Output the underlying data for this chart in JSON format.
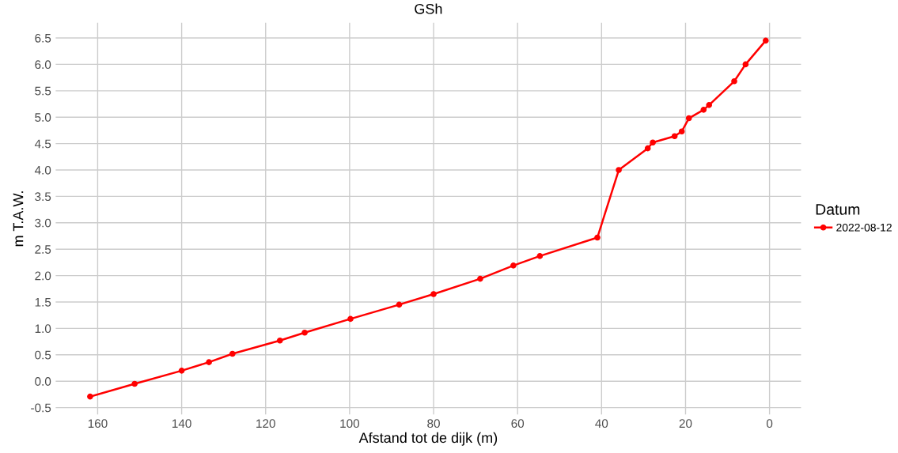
{
  "chart_data": {
    "type": "line",
    "title": "GSh",
    "xlabel": "Afstand tot de dijk (m)",
    "ylabel": "m T.A.W.",
    "legend_title": "Datum",
    "series": [
      {
        "name": "2022-08-12",
        "color": "#ff0000",
        "x": [
          161.8,
          151.2,
          140.0,
          133.5,
          127.9,
          116.6,
          110.7,
          99.8,
          88.2,
          80.0,
          68.9,
          61.0,
          54.7,
          41.0,
          35.9,
          29.0,
          27.8,
          22.6,
          20.9,
          19.2,
          15.7,
          14.4,
          8.4,
          5.7,
          0.9
        ],
        "values": [
          -0.29,
          -0.05,
          0.2,
          0.36,
          0.52,
          0.77,
          0.92,
          1.18,
          1.45,
          1.65,
          1.94,
          2.19,
          2.37,
          2.72,
          4.0,
          4.41,
          4.52,
          4.64,
          4.73,
          4.98,
          5.14,
          5.23,
          5.68,
          6.0,
          6.45
        ]
      }
    ],
    "xlim": [
      170,
      -7.5
    ],
    "xticks": [
      160,
      140,
      120,
      100,
      80,
      60,
      40,
      20,
      0
    ],
    "ylim": [
      -0.63,
      6.79
    ],
    "yticks": [
      {
        "value": -0.5,
        "label": "-0.5"
      },
      {
        "value": 0,
        "label": "0.0"
      },
      {
        "value": 0.5,
        "label": "0.5"
      },
      {
        "value": 1,
        "label": "1.0"
      },
      {
        "value": 1.5,
        "label": "1.5"
      },
      {
        "value": 2,
        "label": "2.0"
      },
      {
        "value": 2.5,
        "label": "2.5"
      },
      {
        "value": 3,
        "label": "3.0"
      },
      {
        "value": 3.5,
        "label": "3.5"
      },
      {
        "value": 4,
        "label": "4.0"
      },
      {
        "value": 4.5,
        "label": "4.5"
      },
      {
        "value": 5,
        "label": "5.0"
      },
      {
        "value": 5.5,
        "label": "5.5"
      },
      {
        "value": 6,
        "label": "6.0"
      },
      {
        "value": 6.5,
        "label": "6.5"
      }
    ],
    "grid": true,
    "legend": "right",
    "marker": "circle",
    "line_style": "solid"
  }
}
